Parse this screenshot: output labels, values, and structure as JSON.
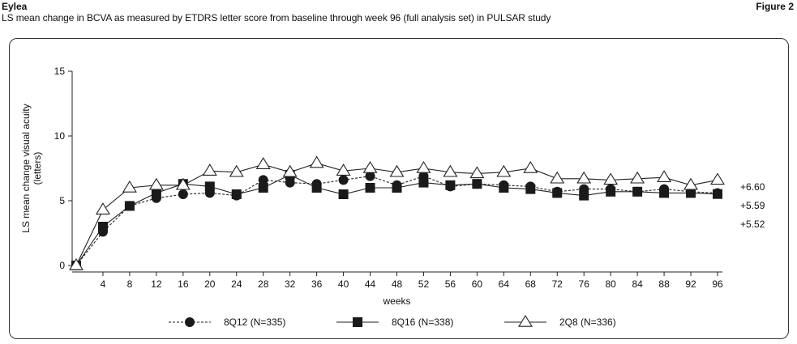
{
  "header": {
    "product": "Eylea",
    "figure": "Figure 2",
    "caption": "LS mean change in BCVA as measured by ETDRS letter score from baseline through week 96 (full analysis set) in PULSAR study"
  },
  "chart_data": {
    "type": "line",
    "title": "",
    "xlabel": "weeks",
    "ylabel": "LS mean change visual acuity\n(letters)",
    "x": [
      0,
      4,
      8,
      12,
      16,
      20,
      24,
      28,
      32,
      36,
      40,
      44,
      48,
      52,
      56,
      60,
      64,
      68,
      72,
      76,
      80,
      84,
      88,
      92,
      96
    ],
    "x_tick_labels": [
      "4",
      "8",
      "12",
      "16",
      "20",
      "24",
      "28",
      "32",
      "36",
      "40",
      "44",
      "48",
      "52",
      "56",
      "60",
      "64",
      "68",
      "72",
      "76",
      "80",
      "84",
      "88",
      "92",
      "96"
    ],
    "ylim": [
      0,
      15
    ],
    "y_ticks": [
      0,
      5,
      10,
      15
    ],
    "grid": false,
    "legend_position": "bottom",
    "series": [
      {
        "name": "8Q12 (N=335)",
        "marker": "circle",
        "line_style": "dashed",
        "values": [
          0,
          2.6,
          4.6,
          5.2,
          5.5,
          5.6,
          5.4,
          6.6,
          6.4,
          6.3,
          6.6,
          6.9,
          6.2,
          6.9,
          6.1,
          6.3,
          6.2,
          6.1,
          5.7,
          5.9,
          5.9,
          5.7,
          5.9,
          5.7,
          5.59
        ]
      },
      {
        "name": "8Q16 (N=338)",
        "marker": "square",
        "line_style": "solid",
        "values": [
          0,
          3.0,
          4.6,
          5.6,
          6.3,
          6.1,
          5.5,
          6.0,
          7.0,
          6.0,
          5.5,
          6.0,
          6.0,
          6.4,
          6.2,
          6.3,
          6.0,
          5.9,
          5.6,
          5.4,
          5.7,
          5.7,
          5.6,
          5.6,
          5.52
        ]
      },
      {
        "name": "2Q8 (N=336)",
        "marker": "triangle",
        "line_style": "solid",
        "values": [
          0,
          4.3,
          6.0,
          6.2,
          6.2,
          7.3,
          7.2,
          7.8,
          7.2,
          7.9,
          7.3,
          7.5,
          7.2,
          7.5,
          7.2,
          7.1,
          7.2,
          7.5,
          6.7,
          6.7,
          6.6,
          6.7,
          6.8,
          6.2,
          6.6
        ]
      }
    ],
    "end_labels": [
      "+6.60",
      "+5.59",
      "+5.52"
    ],
    "colors": {
      "line": "#222222",
      "marker_fill": "#1a1a1a",
      "triangle_fill": "#ffffff"
    }
  }
}
